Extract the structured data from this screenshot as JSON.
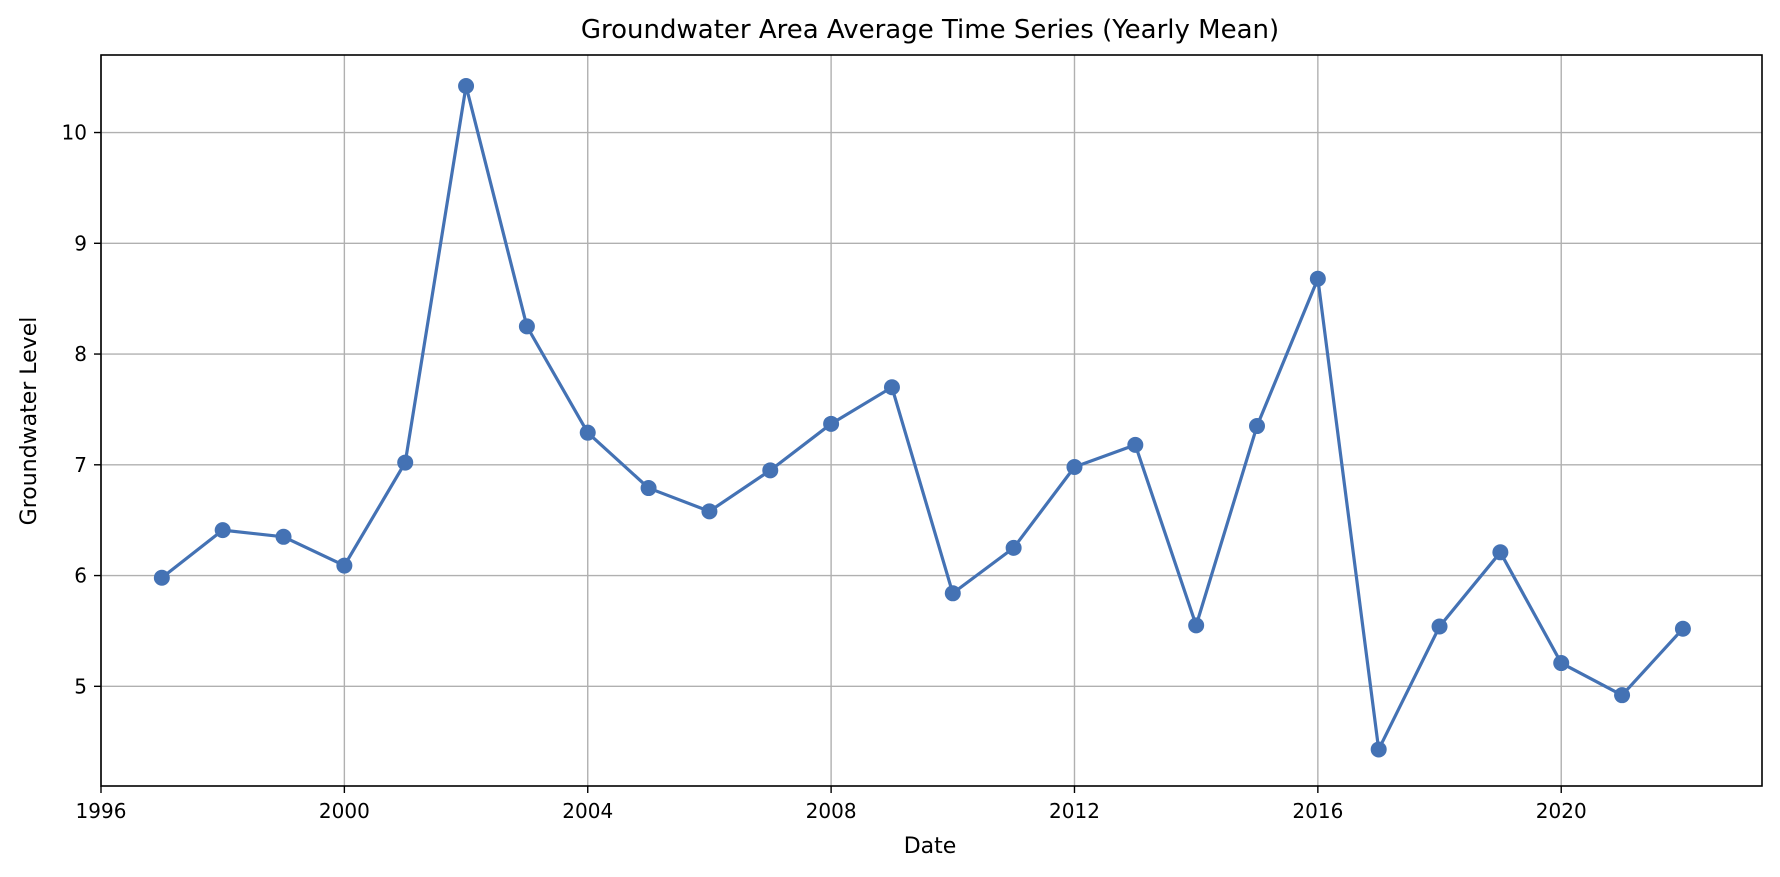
{
  "chart_data": {
    "type": "line",
    "title": "Groundwater Area Average Time Series (Yearly Mean)",
    "xlabel": "Date",
    "ylabel": "Groundwater Level",
    "x_unit": "year",
    "xlim": [
      1996,
      2023.3
    ],
    "ylim": [
      4.1,
      10.7
    ],
    "x_ticks": [
      1996,
      2000,
      2004,
      2008,
      2012,
      2016,
      2020
    ],
    "x_tick_labels": [
      "1996",
      "2000",
      "2004",
      "2008",
      "2012",
      "2016",
      "2020"
    ],
    "y_ticks": [
      5,
      6,
      7,
      8,
      9,
      10
    ],
    "y_tick_labels": [
      "5",
      "6",
      "7",
      "8",
      "9",
      "10"
    ],
    "grid": true,
    "legend": false,
    "series": [
      {
        "color": "#4472b4",
        "marker": "circle",
        "x": [
          1997,
          1998,
          1999,
          2000,
          2001,
          2002,
          2003,
          2004,
          2005,
          2006,
          2007,
          2008,
          2009,
          2010,
          2011,
          2012,
          2013,
          2014,
          2015,
          2016,
          2017,
          2018,
          2019,
          2020,
          2021,
          2022
        ],
        "values": [
          5.98,
          6.41,
          6.35,
          6.09,
          7.02,
          10.42,
          8.25,
          7.29,
          6.79,
          6.58,
          6.95,
          7.37,
          7.7,
          5.84,
          6.25,
          6.98,
          7.18,
          5.55,
          7.35,
          8.68,
          4.43,
          5.54,
          6.21,
          5.21,
          4.92,
          5.52
        ]
      }
    ]
  }
}
